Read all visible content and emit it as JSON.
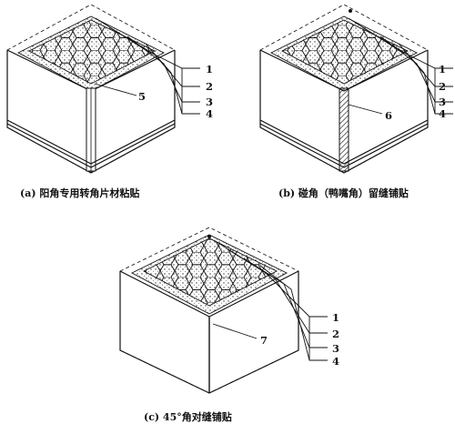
{
  "figures": [
    {
      "id": "a",
      "caption": "(a) 阳角专用转角片材粘贴",
      "corner_label": "5",
      "layers": [
        "1",
        "2",
        "3",
        "4"
      ]
    },
    {
      "id": "b",
      "caption": "(b) 碰角（鸭嘴角）留缝铺贴",
      "corner_label": "6",
      "layers": [
        "1",
        "2",
        "3",
        "4"
      ]
    },
    {
      "id": "c",
      "caption": "(c) 45°角对缝铺贴",
      "corner_label": "7",
      "layers": [
        "1",
        "2",
        "3",
        "4"
      ]
    }
  ]
}
